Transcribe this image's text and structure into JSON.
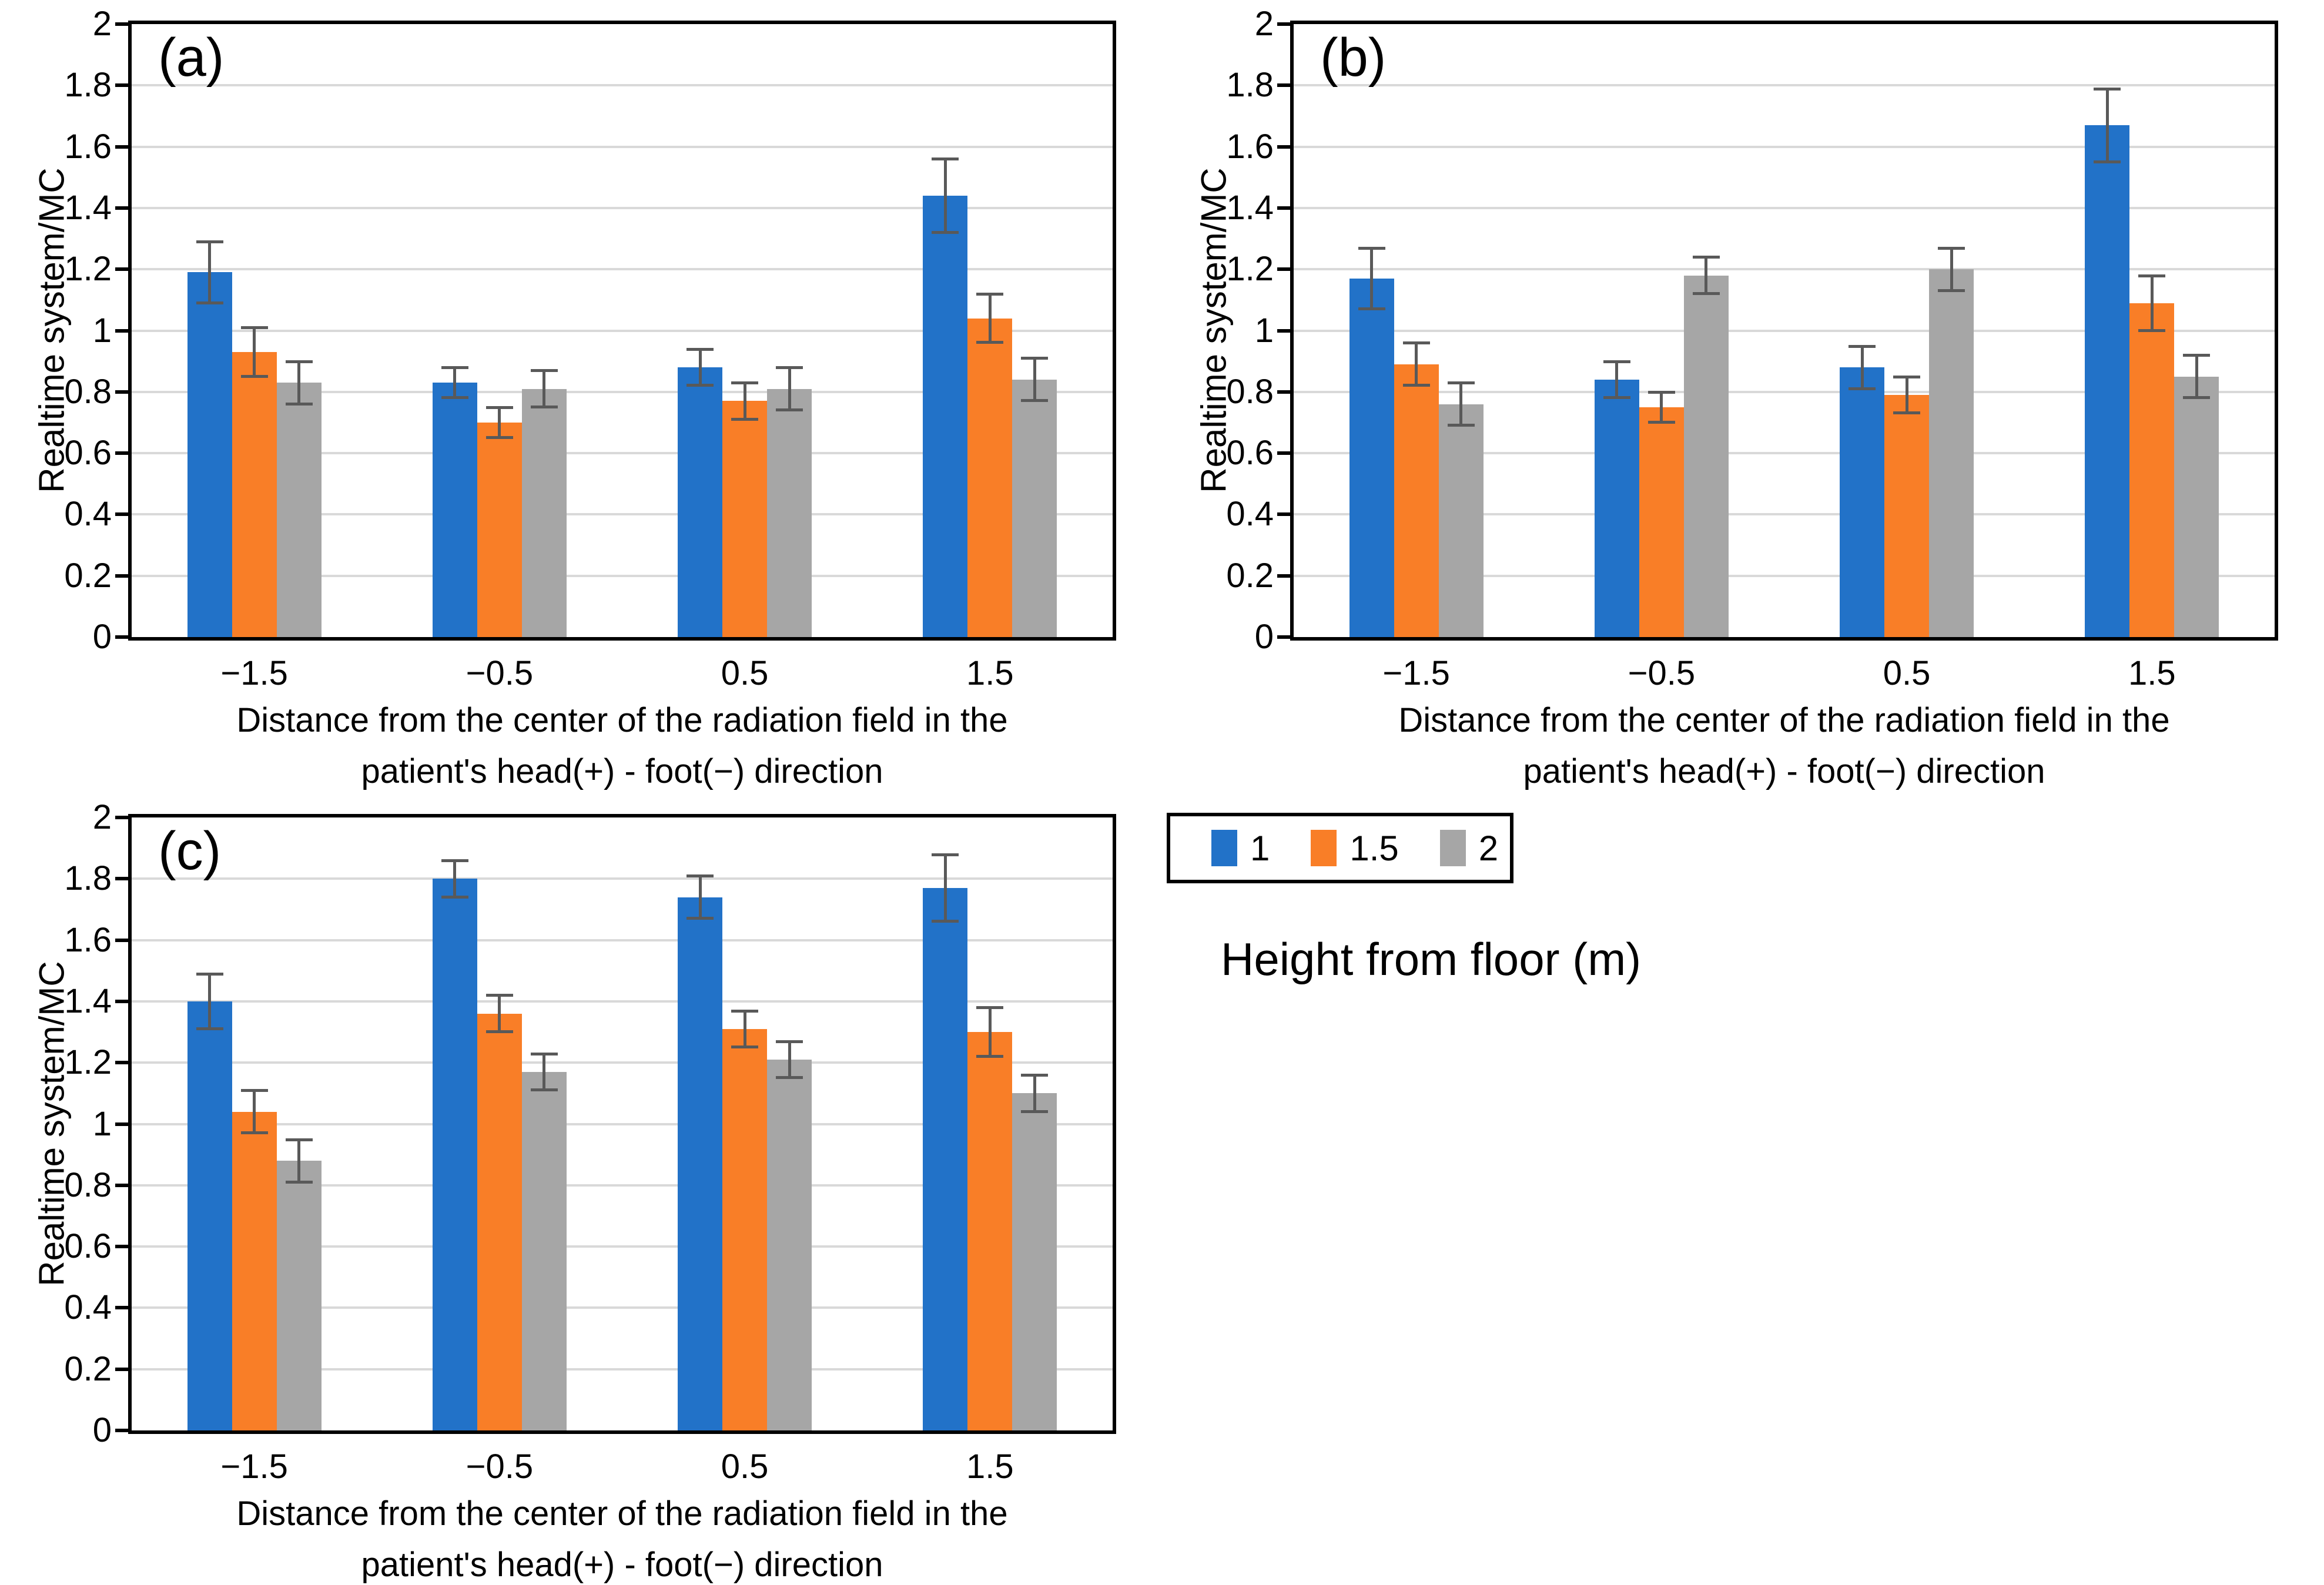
{
  "colors": {
    "blue": "#2272C8",
    "orange": "#F97E27",
    "gray": "#A6A6A6",
    "error_bar": "#595959",
    "gridline": "#D9D9D9",
    "axis": "#000000"
  },
  "axis": {
    "ylabel": "Realtime system/MC",
    "xlabel_line1": "Distance from the center of the radiation field in the",
    "xlabel_line2": "patient's head(+) - foot(−) direction",
    "yticks": [
      "2",
      "1.8",
      "1.6",
      "1.4",
      "1.2",
      "1",
      "0.8",
      "0.6",
      "0.4",
      "0.2",
      "0"
    ],
    "ylim": [
      0,
      2
    ],
    "grid": true,
    "categories": [
      "−1.5",
      "−0.5",
      "0.5",
      "1.5"
    ]
  },
  "legend": {
    "title": "Height from floor (m)",
    "position": "bottom-right",
    "items": [
      {
        "label": "1",
        "color": "#2272C8"
      },
      {
        "label": "1.5",
        "color": "#F97E27"
      },
      {
        "label": "2",
        "color": "#A6A6A6"
      }
    ]
  },
  "chart_data": [
    {
      "type": "bar",
      "panel": "(a)",
      "categories": [
        "−1.5",
        "−0.5",
        "0.5",
        "1.5"
      ],
      "ylim": [
        0,
        2
      ],
      "series": [
        {
          "name": "1",
          "color": "#2272C8",
          "values": [
            1.19,
            0.83,
            0.88,
            1.44
          ],
          "errors": [
            0.1,
            0.05,
            0.06,
            0.12
          ]
        },
        {
          "name": "1.5",
          "color": "#F97E27",
          "values": [
            0.93,
            0.7,
            0.77,
            1.04
          ],
          "errors": [
            0.08,
            0.05,
            0.06,
            0.08
          ]
        },
        {
          "name": "2",
          "color": "#A6A6A6",
          "values": [
            0.83,
            0.81,
            0.81,
            0.84
          ],
          "errors": [
            0.07,
            0.06,
            0.07,
            0.07
          ]
        }
      ]
    },
    {
      "type": "bar",
      "panel": "(b)",
      "categories": [
        "−1.5",
        "−0.5",
        "0.5",
        "1.5"
      ],
      "ylim": [
        0,
        2
      ],
      "series": [
        {
          "name": "1",
          "color": "#2272C8",
          "values": [
            1.17,
            0.84,
            0.88,
            1.67
          ],
          "errors": [
            0.1,
            0.06,
            0.07,
            0.12
          ]
        },
        {
          "name": "1.5",
          "color": "#F97E27",
          "values": [
            0.89,
            0.75,
            0.79,
            1.09
          ],
          "errors": [
            0.07,
            0.05,
            0.06,
            0.09
          ]
        },
        {
          "name": "2",
          "color": "#A6A6A6",
          "values": [
            0.76,
            1.18,
            1.2,
            0.85
          ],
          "errors": [
            0.07,
            0.06,
            0.07,
            0.07
          ]
        }
      ]
    },
    {
      "type": "bar",
      "panel": "(c)",
      "categories": [
        "−1.5",
        "−0.5",
        "0.5",
        "1.5"
      ],
      "ylim": [
        0,
        2
      ],
      "series": [
        {
          "name": "1",
          "color": "#2272C8",
          "values": [
            1.4,
            1.8,
            1.74,
            1.77
          ],
          "errors": [
            0.09,
            0.06,
            0.07,
            0.11
          ]
        },
        {
          "name": "1.5",
          "color": "#F97E27",
          "values": [
            1.04,
            1.36,
            1.31,
            1.3
          ],
          "errors": [
            0.07,
            0.06,
            0.06,
            0.08
          ]
        },
        {
          "name": "2",
          "color": "#A6A6A6",
          "values": [
            0.88,
            1.17,
            1.21,
            1.1
          ],
          "errors": [
            0.07,
            0.06,
            0.06,
            0.06
          ]
        }
      ]
    }
  ]
}
